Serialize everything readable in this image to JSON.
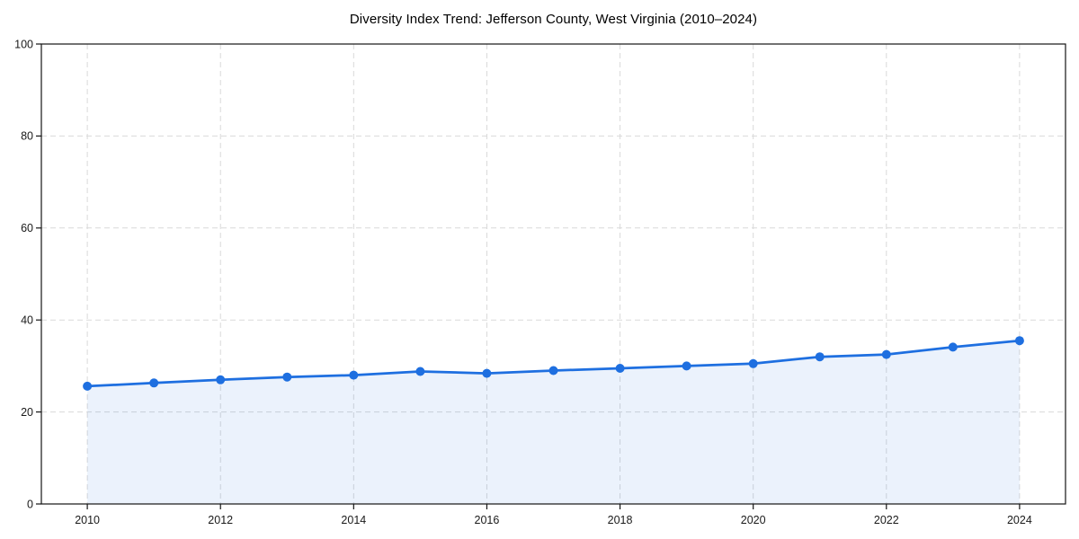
{
  "chart_data": {
    "type": "line",
    "title": "Diversity Index Trend: Jefferson County, West Virginia (2010–2024)",
    "x": [
      2010,
      2011,
      2012,
      2013,
      2014,
      2015,
      2016,
      2017,
      2018,
      2019,
      2020,
      2021,
      2022,
      2023,
      2024
    ],
    "series": [
      {
        "name": "Diversity Index",
        "values": [
          25.6,
          26.3,
          27.0,
          27.6,
          28.0,
          28.8,
          28.4,
          29.0,
          29.5,
          30.0,
          30.5,
          32.0,
          32.5,
          34.1,
          35.5
        ]
      }
    ],
    "xlabel": "",
    "ylabel": "",
    "xlim": [
      2009.31,
      2024.69
    ],
    "ylim": [
      0,
      100
    ],
    "xticks": [
      2010,
      2012,
      2014,
      2016,
      2018,
      2020,
      2022,
      2024
    ],
    "yticks": [
      0,
      20,
      40,
      60,
      80,
      100
    ],
    "grid": true,
    "grid_style": "dashed",
    "legend": false,
    "area_fill": true,
    "marker": "circle",
    "colors": {
      "line": "#1e6fe0",
      "area": "#1e6fe0",
      "grid": "#d9d9d9",
      "spine": "#141414",
      "tick_text": "#1a1a1a",
      "title_text": "#000000",
      "background": "#ffffff"
    }
  }
}
